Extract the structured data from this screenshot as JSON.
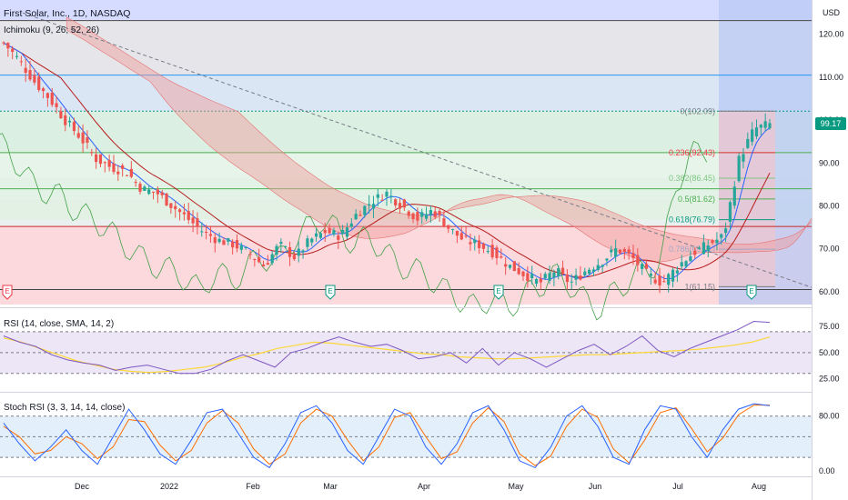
{
  "header": {
    "title": "First Solar, Inc., 1D, NASDAQ",
    "indicator": "Ichimoku (9, 26, 52, 26)",
    "currency": "USD"
  },
  "colors": {
    "up": "#26a69a",
    "down": "#ef5350",
    "ichimoku_conversion": "#2962ff",
    "ichimoku_base": "#b71c1c",
    "ichimoku_lagging": "#43a047",
    "cloud_bull": "#a5d6a7",
    "cloud_bear": "#ef9a9a",
    "rsi_line": "#7e57c2",
    "rsi_sma": "#fdd835",
    "stoch_k": "#2962ff",
    "stoch_d": "#ff6d00",
    "last_price": "#089981"
  },
  "price_axis": {
    "ticks": [
      "120.00",
      "110.00",
      "100.00",
      "90.00",
      "80.00",
      "70.00",
      "60.00"
    ],
    "last_price": "99.17"
  },
  "rsi_panel": {
    "title": "RSI (14, close, SMA, 14, 2)",
    "ticks": [
      "75.00",
      "50.00",
      "25.00"
    ]
  },
  "stoch_panel": {
    "title": "Stoch RSI (3, 3, 14, 14, close)",
    "ticks": [
      "80.00",
      "0.00"
    ]
  },
  "time_axis": {
    "labels": [
      "Dec",
      "2022",
      "Feb",
      "Mar",
      "Apr",
      "May",
      "Jun",
      "Jul",
      "Aug"
    ]
  },
  "fib_labels": [
    "0(102.09)",
    "0.236(92.43)",
    "0.382(86.45)",
    "0.5(81.62)",
    "0.618(76.79)",
    "0.786(69.91)",
    "1(61.15)"
  ],
  "earnings_marker": "E",
  "chart_data": {
    "type": "candlestick",
    "symbol": "First Solar, Inc.",
    "interval": "1D",
    "exchange": "NASDAQ",
    "y_range": [
      57,
      128
    ],
    "fibonacci": [
      {
        "level": 0,
        "price": 102.09
      },
      {
        "level": 0.236,
        "price": 92.43
      },
      {
        "level": 0.382,
        "price": 86.45
      },
      {
        "level": 0.5,
        "price": 81.62
      },
      {
        "level": 0.618,
        "price": 76.79
      },
      {
        "level": 0.786,
        "price": 69.91
      },
      {
        "level": 1,
        "price": 61.15
      }
    ],
    "close_path": [
      118,
      114,
      109,
      105,
      100,
      96,
      91,
      89,
      88,
      84,
      83,
      80,
      77,
      74,
      72,
      71,
      69,
      66,
      71,
      68,
      72,
      74,
      73,
      78,
      81,
      83,
      80,
      77,
      79,
      75,
      72,
      71,
      69,
      66,
      64,
      62,
      65,
      62,
      65,
      67,
      70,
      68,
      64,
      62,
      66,
      69,
      71,
      73,
      91,
      98,
      99
    ],
    "rsi_path": [
      66,
      60,
      56,
      48,
      43,
      40,
      38,
      33,
      36,
      38,
      34,
      30,
      30,
      34,
      42,
      48,
      42,
      36,
      50,
      54,
      60,
      65,
      60,
      56,
      58,
      52,
      44,
      46,
      50,
      40,
      54,
      38,
      50,
      44,
      36,
      44,
      52,
      58,
      48,
      56,
      66,
      52,
      46,
      54,
      60,
      66,
      72,
      80,
      79
    ],
    "rsi_sma_path": [
      64,
      60,
      54,
      48,
      42,
      38,
      34,
      32,
      31,
      32,
      34,
      36,
      40,
      45,
      49,
      54,
      57,
      60,
      59,
      57,
      55,
      53,
      51,
      49,
      48,
      46,
      45,
      44,
      44,
      45,
      46,
      47,
      48,
      48,
      49,
      50,
      51,
      52,
      53,
      55,
      57,
      60,
      65
    ],
    "stoch_k_path": [
      70,
      40,
      15,
      35,
      60,
      30,
      10,
      50,
      90,
      60,
      25,
      10,
      45,
      85,
      90,
      55,
      20,
      5,
      40,
      85,
      95,
      70,
      30,
      10,
      50,
      90,
      80,
      35,
      10,
      40,
      85,
      95,
      60,
      15,
      5,
      35,
      80,
      95,
      65,
      20,
      10,
      60,
      95,
      90,
      50,
      20,
      60,
      90,
      98,
      95
    ],
    "stoch_d_path": [
      65,
      50,
      25,
      30,
      50,
      40,
      18,
      35,
      75,
      72,
      38,
      15,
      30,
      70,
      88,
      70,
      32,
      10,
      25,
      70,
      90,
      80,
      45,
      15,
      35,
      78,
      85,
      50,
      18,
      28,
      70,
      92,
      72,
      25,
      8,
      22,
      65,
      90,
      78,
      32,
      12,
      45,
      85,
      92,
      62,
      28,
      48,
      82,
      96,
      96
    ]
  }
}
